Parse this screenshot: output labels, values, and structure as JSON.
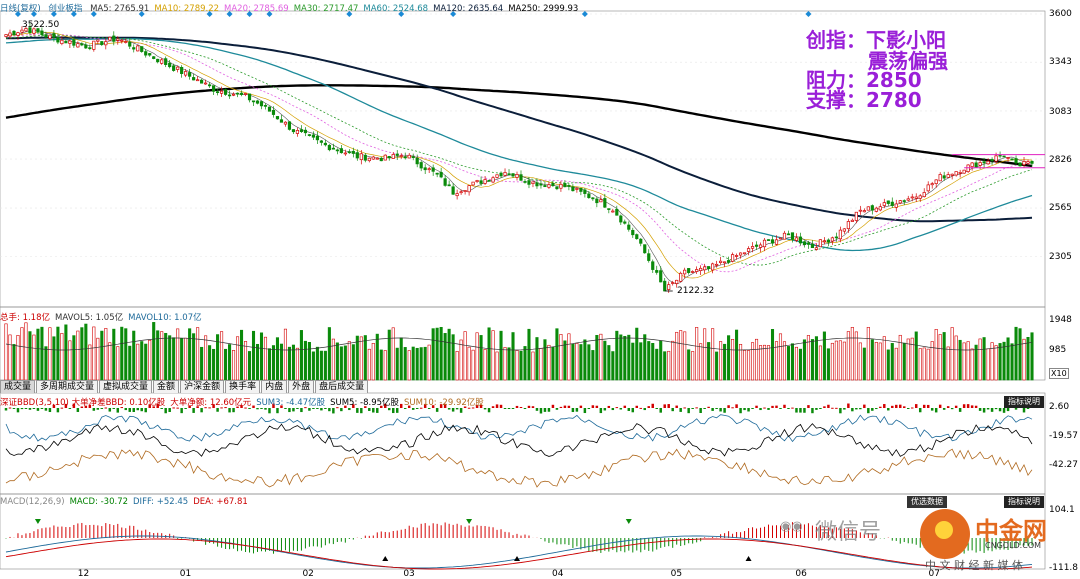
{
  "title_bar": {
    "period": "日线(复权)",
    "index_name": "创业板指",
    "ma": [
      {
        "label": "MA5: 2765.91",
        "color": "#333333"
      },
      {
        "label": "MA10: 2789.22",
        "color": "#d4a000"
      },
      {
        "label": "MA20: 2785.69",
        "color": "#e060e0"
      },
      {
        "label": "MA30: 2717.47",
        "color": "#2a9a2a"
      },
      {
        "label": "MA60: 2524.68",
        "color": "#1e8a9a"
      },
      {
        "label": "MA120: 2635.64",
        "color": "#0b1e3a"
      },
      {
        "label": "MA250: 2999.93",
        "color": "#000000"
      }
    ]
  },
  "annotation": {
    "line1": "创指：下影小阳",
    "line2": "震荡偏强",
    "line3": "阻力：2850",
    "line4": "支撑：2780"
  },
  "price_labels": {
    "high": "3522.50",
    "low": "2122.32"
  },
  "price_axis": [
    "3600",
    "3343",
    "3083",
    "2826",
    "2565",
    "2305"
  ],
  "volume_head": [
    {
      "label": "总手: 1.18亿",
      "color": "#cc0000"
    },
    {
      "label": "MAVOL5: 1.05亿",
      "color": "#333333"
    },
    {
      "label": "MAVOL10: 1.07亿",
      "color": "#1e6a9a"
    }
  ],
  "volume_axis": [
    "1948",
    "985"
  ],
  "volume_unit": "X10",
  "tabs": [
    "成交量",
    "多周期成交量",
    "虚拟成交量",
    "金额",
    "沪深金额",
    "换手率",
    "内盘",
    "外盘",
    "盘后成交量"
  ],
  "bbd_head": [
    {
      "label": "深证BBD(3,5,10)  大单净差BBD: 0.10亿股",
      "color": "#cc0000"
    },
    {
      "label": "大单净额: 12.60亿元",
      "color": "#cc0000"
    },
    {
      "label": "SUM3: -4.47亿股",
      "color": "#1e6a9a"
    },
    {
      "label": "SUM5: -8.95亿股",
      "color": "#000000"
    },
    {
      "label": "SUM10: -29.92亿股",
      "color": "#b06a20"
    }
  ],
  "bbd_axis": [
    "2.60",
    "-19.57",
    "-42.27"
  ],
  "bbd_button": "指标说明",
  "macd_head": [
    {
      "label": "MACD(12,26,9)",
      "color": "#888888"
    },
    {
      "label": "MACD: -30.72",
      "color": "#008000"
    },
    {
      "label": "DIFF: +52.45",
      "color": "#1e6a9a"
    },
    {
      "label": "DEA: +67.81",
      "color": "#cc0000"
    }
  ],
  "macd_axis": [
    "104.1",
    "-111.8"
  ],
  "macd_buttons": [
    "优选数据",
    "指标说明"
  ],
  "x_axis": [
    {
      "label": "12",
      "pos": 0.07
    },
    {
      "label": "01",
      "pos": 0.168
    },
    {
      "label": "02",
      "pos": 0.286
    },
    {
      "label": "03",
      "pos": 0.383
    },
    {
      "label": "04",
      "pos": 0.526
    },
    {
      "label": "05",
      "pos": 0.64
    },
    {
      "label": "06",
      "pos": 0.76
    },
    {
      "label": "07",
      "pos": 0.888
    }
  ],
  "watermark": {
    "wechat": "微信号",
    "brand": "中金网",
    "domain": "CNGOLD.COM",
    "slogan": "中 文 财 经 新 媒 体"
  },
  "chart_data": {
    "type": "candlestick",
    "instrument": "创业板指",
    "series_control_points": [
      [
        0,
        3490
      ],
      [
        5,
        3522.5
      ],
      [
        12,
        3470
      ],
      [
        20,
        3430
      ],
      [
        28,
        3470
      ],
      [
        35,
        3390
      ],
      [
        45,
        3280
      ],
      [
        52,
        3200
      ],
      [
        60,
        3160
      ],
      [
        65,
        3100
      ],
      [
        72,
        2980
      ],
      [
        80,
        2900
      ],
      [
        88,
        2840
      ],
      [
        95,
        2830
      ],
      [
        100,
        2850
      ],
      [
        108,
        2740
      ],
      [
        112,
        2650
      ],
      [
        118,
        2700
      ],
      [
        125,
        2760
      ],
      [
        132,
        2700
      ],
      [
        140,
        2680
      ],
      [
        147,
        2620
      ],
      [
        152,
        2560
      ],
      [
        158,
        2400
      ],
      [
        162,
        2250
      ],
      [
        165,
        2122.32
      ],
      [
        170,
        2220
      ],
      [
        176,
        2240
      ],
      [
        182,
        2300
      ],
      [
        190,
        2380
      ],
      [
        196,
        2420
      ],
      [
        202,
        2360
      ],
      [
        208,
        2420
      ],
      [
        214,
        2550
      ],
      [
        220,
        2580
      ],
      [
        228,
        2630
      ],
      [
        234,
        2730
      ],
      [
        240,
        2780
      ],
      [
        246,
        2820
      ],
      [
        250,
        2850
      ],
      [
        253,
        2790
      ],
      [
        258,
        2810
      ]
    ],
    "ma_latest": {
      "MA5": 2765.91,
      "MA10": 2789.22,
      "MA20": 2785.69,
      "MA30": 2717.47,
      "MA60": 2524.68,
      "MA120": 2635.64,
      "MA250": 2999.93
    },
    "volume": {
      "total": "1.18亿",
      "MAVOL5": "1.05亿",
      "MAVOL10": "1.07亿"
    },
    "bbd": {
      "BBD": 0.1,
      "大单净额": 12.6,
      "SUM3": -4.47,
      "SUM5": -8.95,
      "SUM10": -29.92
    },
    "macd": {
      "MACD": -30.72,
      "DIFF": 52.45,
      "DEA": 67.81
    },
    "resistance": 2850,
    "support": 2780,
    "ylim_price": [
      2122.32,
      3600
    ]
  }
}
